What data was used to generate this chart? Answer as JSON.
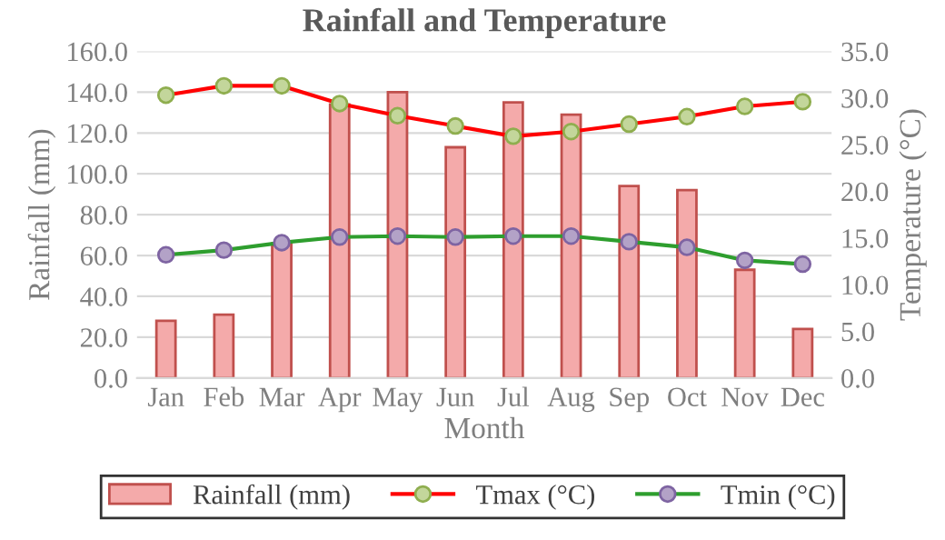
{
  "chart_data": {
    "type": "bar",
    "title": "Rainfall and Temperature",
    "xlabel": "Month",
    "ylabel": "Rainfall (mm)",
    "y2label": "Temperature (°C)",
    "categories": [
      "Jan",
      "Feb",
      "Mar",
      "Apr",
      "May",
      "Jun",
      "Jul",
      "Aug",
      "Sep",
      "Oct",
      "Nov",
      "Dec"
    ],
    "series": [
      {
        "name": "Rainfall (mm)",
        "color": "#f4aaaa",
        "values": [
          28,
          31,
          66,
          134,
          140,
          113,
          135,
          129,
          94,
          92,
          53,
          24
        ]
      },
      {
        "name": "Tmax (°C)",
        "type": "line",
        "axis": "y2",
        "color": "#ff0000",
        "marker": "circle",
        "values": [
          30.3,
          31.3,
          31.3,
          29.4,
          28.1,
          27.0,
          25.9,
          26.4,
          27.2,
          28.0,
          29.1,
          29.6
        ]
      },
      {
        "name": "Tmin (°C)",
        "type": "line",
        "axis": "y2",
        "color": "#2e9e2e",
        "marker": "circle",
        "values": [
          13.2,
          13.7,
          14.5,
          15.1,
          15.2,
          15.1,
          15.2,
          15.2,
          14.6,
          14.0,
          12.6,
          12.2
        ]
      }
    ],
    "ylim": [
      0,
      160
    ],
    "yticks": [
      {
        "value": 0,
        "label": "0.0"
      },
      {
        "value": 20,
        "label": "20.0"
      },
      {
        "value": 40,
        "label": "40.0"
      },
      {
        "value": 60,
        "label": "60.0"
      },
      {
        "value": 80,
        "label": "80.0"
      },
      {
        "value": 100,
        "label": "100.0"
      },
      {
        "value": 120,
        "label": "120.0"
      },
      {
        "value": 140,
        "label": "140.0"
      },
      {
        "value": 160,
        "label": "160.0"
      }
    ],
    "y2lim": [
      0,
      35
    ],
    "y2ticks": [
      {
        "value": 0,
        "label": "0.0"
      },
      {
        "value": 5,
        "label": "5.0"
      },
      {
        "value": 10,
        "label": "10.0"
      },
      {
        "value": 15,
        "label": "15.0"
      },
      {
        "value": 20,
        "label": "20.0"
      },
      {
        "value": 25,
        "label": "25.0"
      },
      {
        "value": 30,
        "label": "30.0"
      },
      {
        "value": 35,
        "label": "35.0"
      }
    ],
    "grid": "y",
    "legend": "bottom"
  }
}
